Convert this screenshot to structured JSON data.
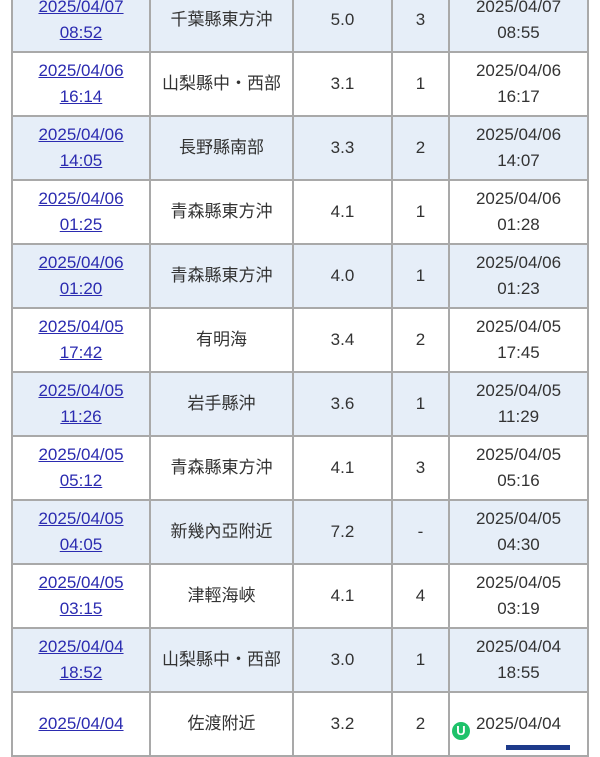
{
  "rows": [
    {
      "time": [
        "2025/04/07",
        "08:52"
      ],
      "region": "千葉縣東方沖",
      "mag": "5.0",
      "intensity": "3",
      "issued": [
        "2025/04/07",
        "08:55"
      ]
    },
    {
      "time": [
        "2025/04/06",
        "16:14"
      ],
      "region": "山梨縣中・西部",
      "mag": "3.1",
      "intensity": "1",
      "issued": [
        "2025/04/06",
        "16:17"
      ]
    },
    {
      "time": [
        "2025/04/06",
        "14:05"
      ],
      "region": "長野縣南部",
      "mag": "3.3",
      "intensity": "2",
      "issued": [
        "2025/04/06",
        "14:07"
      ]
    },
    {
      "time": [
        "2025/04/06",
        "01:25"
      ],
      "region": "青森縣東方沖",
      "mag": "4.1",
      "intensity": "1",
      "issued": [
        "2025/04/06",
        "01:28"
      ]
    },
    {
      "time": [
        "2025/04/06",
        "01:20"
      ],
      "region": "青森縣東方沖",
      "mag": "4.0",
      "intensity": "1",
      "issued": [
        "2025/04/06",
        "01:23"
      ]
    },
    {
      "time": [
        "2025/04/05",
        "17:42"
      ],
      "region": "有明海",
      "mag": "3.4",
      "intensity": "2",
      "issued": [
        "2025/04/05",
        "17:45"
      ]
    },
    {
      "time": [
        "2025/04/05",
        "11:26"
      ],
      "region": "岩手縣沖",
      "mag": "3.6",
      "intensity": "1",
      "issued": [
        "2025/04/05",
        "11:29"
      ]
    },
    {
      "time": [
        "2025/04/05",
        "05:12"
      ],
      "region": "青森縣東方沖",
      "mag": "4.1",
      "intensity": "3",
      "issued": [
        "2025/04/05",
        "05:16"
      ]
    },
    {
      "time": [
        "2025/04/05",
        "04:05"
      ],
      "region": "新幾內亞附近",
      "mag": "7.2",
      "intensity": "-",
      "issued": [
        "2025/04/05",
        "04:30"
      ]
    },
    {
      "time": [
        "2025/04/05",
        "03:15"
      ],
      "region": "津輕海峽",
      "mag": "4.1",
      "intensity": "4",
      "issued": [
        "2025/04/05",
        "03:19"
      ]
    },
    {
      "time": [
        "2025/04/04",
        "18:52"
      ],
      "region": "山梨縣中・西部",
      "mag": "3.0",
      "intensity": "1",
      "issued": [
        "2025/04/04",
        "18:55"
      ]
    },
    {
      "time": [
        "2025/04/04",
        ""
      ],
      "region": "佐渡附近",
      "mag": "3.2",
      "intensity": "2",
      "issued": [
        "2025/04/04",
        ""
      ]
    }
  ],
  "overlay": {
    "badge_letter": "U",
    "badge_color": "#1ec26a"
  }
}
